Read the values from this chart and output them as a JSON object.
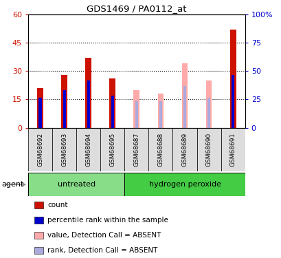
{
  "title": "GDS1469 / PA0112_at",
  "samples": [
    "GSM68692",
    "GSM68693",
    "GSM68694",
    "GSM68695",
    "GSM68687",
    "GSM68688",
    "GSM68689",
    "GSM68690",
    "GSM68691"
  ],
  "count_values": [
    21,
    28,
    37,
    26,
    0,
    0,
    0,
    0,
    52
  ],
  "rank_values": [
    16,
    20,
    25,
    17,
    0,
    0,
    0,
    0,
    28
  ],
  "absent_value_values": [
    0,
    0,
    0,
    0,
    20,
    18,
    34,
    25,
    0
  ],
  "absent_rank_values": [
    0,
    0,
    0,
    0,
    14,
    14,
    22,
    16,
    0
  ],
  "blue_rank_values": [
    16,
    20,
    25,
    17,
    14,
    14,
    22,
    16,
    28
  ],
  "ylim_left": [
    0,
    60
  ],
  "ylim_right": [
    0,
    100
  ],
  "yticks_left": [
    0,
    15,
    30,
    45,
    60
  ],
  "yticks_right": [
    0,
    25,
    50,
    75,
    100
  ],
  "ytick_labels_left": [
    "0",
    "15",
    "30",
    "45",
    "60"
  ],
  "ytick_labels_right": [
    "0",
    "25",
    "50",
    "75",
    "100%"
  ],
  "color_count": "#cc1100",
  "color_rank": "#0000cc",
  "color_absent_value": "#ffaaaa",
  "color_absent_rank": "#aaaadd",
  "color_group_untreated": "#88dd88",
  "color_group_peroxide": "#44cc44",
  "color_sample_bg": "#dddddd",
  "bar_width": 0.25,
  "rank_bar_width": 0.12,
  "group_defs": [
    {
      "label": "untreated",
      "start": 0,
      "end": 3,
      "color": "#88dd88"
    },
    {
      "label": "hydrogen peroxide",
      "start": 4,
      "end": 8,
      "color": "#44cc44"
    }
  ],
  "legend_items": [
    {
      "color": "#cc1100",
      "label": "count"
    },
    {
      "color": "#0000cc",
      "label": "percentile rank within the sample"
    },
    {
      "color": "#ffaaaa",
      "label": "value, Detection Call = ABSENT"
    },
    {
      "color": "#aaaadd",
      "label": "rank, Detection Call = ABSENT"
    }
  ]
}
